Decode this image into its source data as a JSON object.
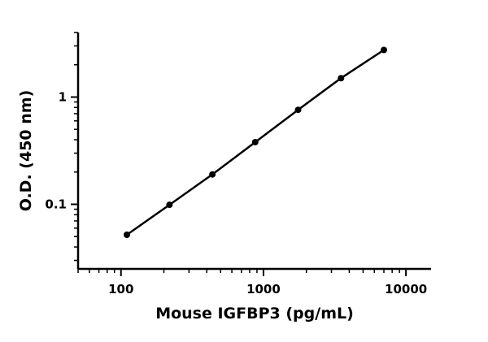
{
  "chart_data": {
    "type": "line",
    "title": "",
    "xlabel": "Mouse IGFBP3 (pg/mL)",
    "ylabel": "O.D. (450 nm)",
    "x_scale": "log",
    "y_scale": "log",
    "xlim": [
      50,
      15000
    ],
    "ylim": [
      0.025,
      4
    ],
    "x_ticks": [
      100,
      1000,
      10000
    ],
    "x_tick_labels": [
      "100",
      "1000",
      "10000"
    ],
    "y_ticks": [
      0.1,
      1
    ],
    "y_tick_labels": [
      "0.1",
      "1"
    ],
    "grid": false,
    "series": [
      {
        "x": [
          110,
          219,
          438,
          875,
          1750,
          3500,
          7000
        ],
        "y": [
          0.052,
          0.099,
          0.19,
          0.38,
          0.76,
          1.5,
          2.75
        ],
        "color": "#000000"
      }
    ]
  }
}
